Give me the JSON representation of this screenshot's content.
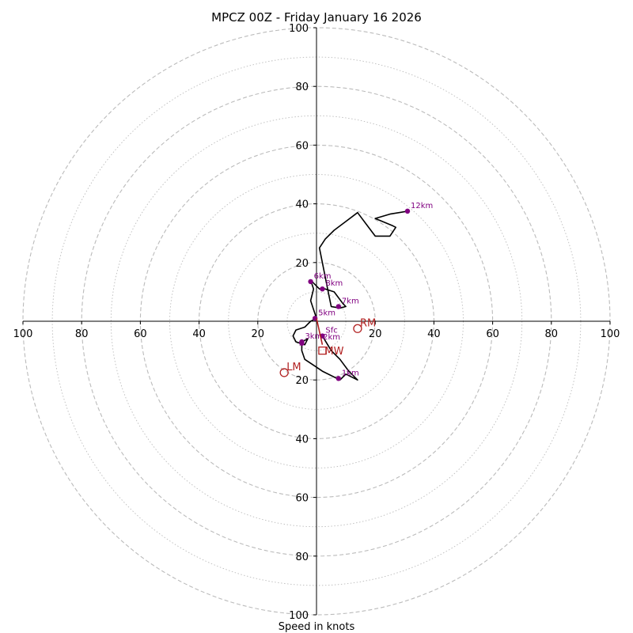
{
  "chart_data": {
    "type": "hodograph",
    "title": "MPCZ 00Z - Friday January 16 2026",
    "xlabel": "Speed in knots",
    "range": [
      -100,
      100
    ],
    "ring_ticks": [
      20,
      40,
      60,
      80,
      100
    ],
    "x_tick_labels": [
      "100",
      "80",
      "60",
      "40",
      "20",
      "20",
      "40",
      "60",
      "80",
      "100"
    ],
    "y_tick_labels": [
      "100",
      "80",
      "60",
      "40",
      "20",
      "20",
      "40",
      "60",
      "80",
      "100"
    ],
    "grid": true,
    "trace": [
      {
        "u": 2,
        "v": -5
      },
      {
        "u": 5,
        "v": -10
      },
      {
        "u": 8,
        "v": -13
      },
      {
        "u": 11,
        "v": -17
      },
      {
        "u": 14,
        "v": -20
      },
      {
        "u": 10,
        "v": -18
      },
      {
        "u": 8,
        "v": -20
      },
      {
        "u": 2,
        "v": -17
      },
      {
        "u": -1,
        "v": -15
      },
      {
        "u": -4,
        "v": -13
      },
      {
        "u": -5,
        "v": -10
      },
      {
        "u": -5,
        "v": -7
      },
      {
        "u": -3,
        "v": -6
      },
      {
        "u": -4,
        "v": -8
      },
      {
        "u": -7,
        "v": -7
      },
      {
        "u": -8,
        "v": -5
      },
      {
        "u": -7,
        "v": -3
      },
      {
        "u": -4,
        "v": -2
      },
      {
        "u": -2,
        "v": 0
      },
      {
        "u": 0,
        "v": 1
      },
      {
        "u": -1,
        "v": 4
      },
      {
        "u": -2,
        "v": 7
      },
      {
        "u": -1,
        "v": 11
      },
      {
        "u": -2,
        "v": 14
      },
      {
        "u": 1,
        "v": 11
      },
      {
        "u": 3,
        "v": 11
      },
      {
        "u": 6,
        "v": 10
      },
      {
        "u": 9,
        "v": 6
      },
      {
        "u": 10,
        "v": 5
      },
      {
        "u": 8,
        "v": 4.5
      },
      {
        "u": 5,
        "v": 5
      },
      {
        "u": 4,
        "v": 10
      },
      {
        "u": 3,
        "v": 15
      },
      {
        "u": 2,
        "v": 20
      },
      {
        "u": 1,
        "v": 25
      },
      {
        "u": 3,
        "v": 28
      },
      {
        "u": 6,
        "v": 31
      },
      {
        "u": 10,
        "v": 34
      },
      {
        "u": 14,
        "v": 37
      },
      {
        "u": 17,
        "v": 33
      },
      {
        "u": 20,
        "v": 29
      },
      {
        "u": 23,
        "v": 29
      },
      {
        "u": 25,
        "v": 29
      },
      {
        "u": 27,
        "v": 32
      },
      {
        "u": 26,
        "v": 32.5
      },
      {
        "u": 20,
        "v": 35
      },
      {
        "u": 25,
        "v": 36.5
      },
      {
        "u": 31,
        "v": 37.5
      }
    ],
    "height_labels": [
      {
        "label": "Sfc",
        "u": 2,
        "v": -5
      },
      {
        "label": "1km",
        "u": 7.5,
        "v": -19.5
      },
      {
        "label": "3km",
        "u": -5,
        "v": -7
      },
      {
        "label": "5km",
        "u": -0.5,
        "v": 1
      },
      {
        "label": "6km",
        "u": -2,
        "v": 13.5
      },
      {
        "label": "7km",
        "u": 7.5,
        "v": 5
      },
      {
        "label": "8km",
        "u": 2,
        "v": 11
      },
      {
        "label": "12km",
        "u": 31,
        "v": 37.5
      }
    ],
    "unlabeled_points": [
      {
        "u": -5,
        "v": -7.5
      }
    ],
    "extra_labels": [
      {
        "label": "2km",
        "u": 2.2,
        "v": -6.2
      }
    ],
    "storm_markers": [
      {
        "label": "RM",
        "u": 14,
        "v": -2.5,
        "shape": "circle"
      },
      {
        "label": "LM",
        "u": -11,
        "v": -17.5,
        "shape": "circle"
      },
      {
        "label": "MW",
        "u": 2,
        "v": -10,
        "shape": "square"
      }
    ],
    "storm_motion_arrow": {
      "from_u": 0,
      "from_v": 1,
      "to_u": 2,
      "to_v": -8
    },
    "colors": {
      "trace": "#000000",
      "points": "#800080",
      "markers": "#b22222",
      "grid": "#bbbbbb"
    }
  }
}
